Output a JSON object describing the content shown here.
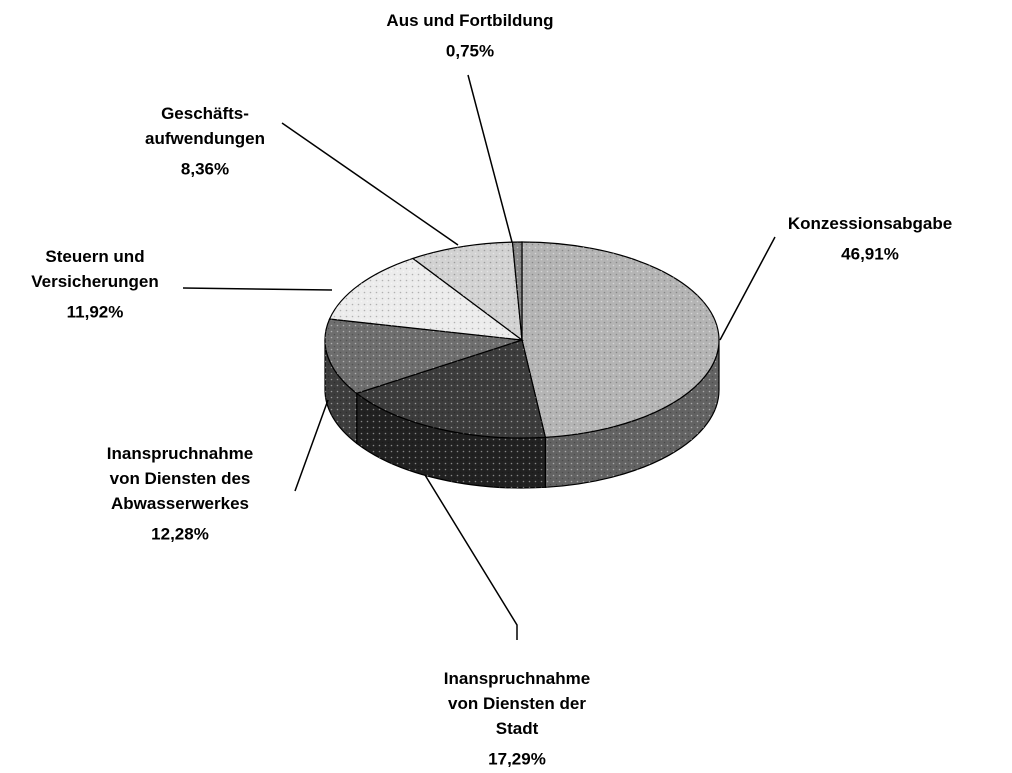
{
  "chart_data": {
    "type": "pie3d",
    "categories": [
      "Konzessionsabgabe",
      "Inanspruchnahme\nvon Diensten der\nStadt",
      "Inanspruchnahme\nvon Diensten des\nAbwasserwerkes",
      "Steuern und\nVersicherungen",
      "Geschäfts-\naufwendungen",
      "Aus und Fortbildung"
    ],
    "values": [
      46.91,
      17.29,
      12.28,
      11.92,
      8.36,
      0.75
    ],
    "value_labels": [
      "46,91%",
      "17,29%",
      "12,28%",
      "11,92%",
      "8,36%",
      "0,75%"
    ],
    "colors": [
      "#b4b4b4",
      "#3c3c3c",
      "#6e6e6e",
      "#ececec",
      "#d2d2d2",
      "#8a8a8a"
    ]
  }
}
